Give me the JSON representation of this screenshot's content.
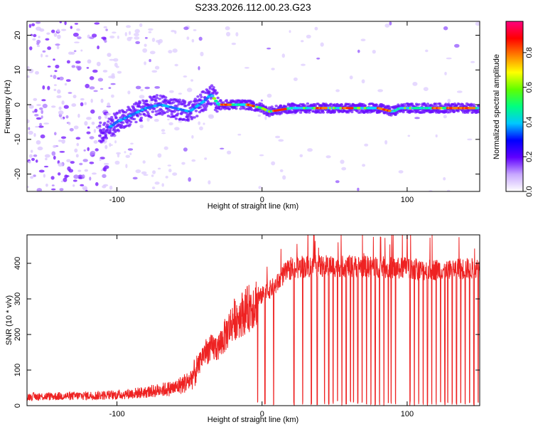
{
  "title": "S233.2026.112.00.23.G23",
  "chart_data": [
    {
      "type": "heatmap",
      "xlabel": "Height of straight line (km)",
      "ylabel": "Frequency (Hz)",
      "xlim": [
        -162,
        150
      ],
      "ylim": [
        -25,
        24
      ],
      "xticks": [
        -100,
        0,
        100
      ],
      "yticks": [
        -20,
        -10,
        0,
        10,
        20
      ],
      "colorbar": {
        "label": "Normalized spectral amplitude",
        "range": [
          0,
          0.98
        ],
        "ticks": [
          "0.0",
          "0.2",
          "0.4",
          "0.6",
          "0.8"
        ],
        "tick_values": [
          0,
          0.2,
          0.4,
          0.6,
          0.8
        ],
        "colors": [
          "#ffffff",
          "#c8a8ff",
          "#6000ff",
          "#0000ff",
          "#00c8ff",
          "#00ff80",
          "#60ff00",
          "#ffff00",
          "#ff8000",
          "#ff0000",
          "#ff0080"
        ]
      },
      "ridge": {
        "x": [
          -110,
          -100,
          -90,
          -80,
          -70,
          -60,
          -50,
          -40,
          -35,
          -30,
          -20,
          -10,
          0,
          5,
          20,
          40,
          60,
          80,
          90,
          95,
          110,
          130,
          150
        ],
        "y": [
          -8,
          -5,
          -3,
          -1,
          0,
          -1,
          -2,
          1,
          3,
          0,
          0,
          0,
          -1,
          -2,
          -1,
          -1,
          -1,
          -1,
          -2,
          -1,
          -1,
          -1,
          -1
        ]
      }
    },
    {
      "type": "line",
      "xlabel": "Height of straight line (km)",
      "ylabel": "SNR (10 * v/v)",
      "xlim": [
        -162,
        150
      ],
      "ylim": [
        0,
        480
      ],
      "xticks": [
        -100,
        0,
        100
      ],
      "yticks": [
        0,
        100,
        200,
        300,
        400
      ],
      "color": "#ee2222",
      "envelope": {
        "x": [
          -162,
          -120,
          -100,
          -80,
          -60,
          -50,
          -45,
          -40,
          -35,
          -30,
          -25,
          -20,
          -10,
          0,
          10,
          15,
          20,
          30,
          40,
          60,
          80,
          95,
          100,
          110,
          130,
          150
        ],
        "y": [
          25,
          28,
          30,
          38,
          50,
          70,
          100,
          150,
          160,
          165,
          200,
          240,
          270,
          310,
          340,
          370,
          385,
          390,
          392,
          392,
          390,
          385,
          390,
          380,
          385,
          385
        ]
      },
      "dropouts": [
        -3,
        2,
        8,
        22,
        28,
        34,
        38,
        43,
        46,
        49,
        52,
        55,
        58,
        61,
        63,
        66,
        69,
        72,
        75,
        78,
        81,
        84,
        87,
        89,
        92,
        102,
        105,
        108,
        111,
        114,
        117,
        120,
        123,
        126,
        128,
        131,
        134,
        137,
        140,
        143,
        146,
        149
      ],
      "spike": {
        "x": 100,
        "y": 478
      }
    }
  ]
}
